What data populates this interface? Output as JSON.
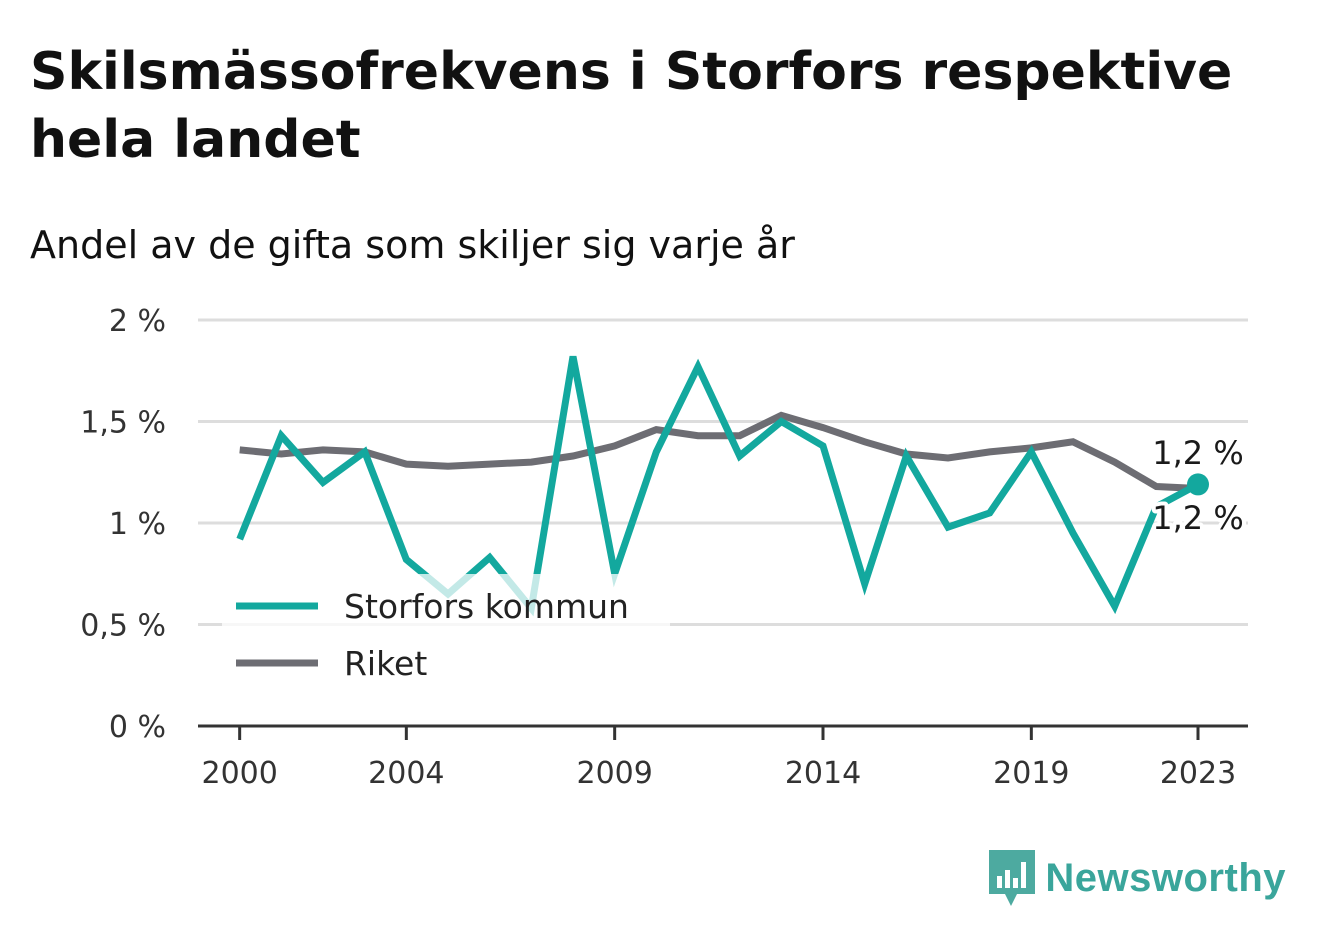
{
  "title": "Skilsmässofrekvens i Storfors respektive hela landet",
  "subtitle": "Andel av de gifta som skiljer sig varje år",
  "brand": {
    "name": "Newsworthy",
    "icon": "newsworthy-logo-icon"
  },
  "colors": {
    "storfors": "#13a89e",
    "riket": "#6d6d73",
    "grid": "#dddddd",
    "axis": "#333333",
    "brand": "#3aa59b"
  },
  "chart_data": {
    "type": "line",
    "title": "Skilsmässofrekvens i Storfors respektive hela landet",
    "subtitle": "Andel av de gifta som skiljer sig varje år",
    "xlabel": "",
    "ylabel": "",
    "x": [
      2000,
      2001,
      2002,
      2003,
      2004,
      2005,
      2006,
      2007,
      2008,
      2009,
      2010,
      2011,
      2012,
      2013,
      2014,
      2015,
      2016,
      2017,
      2018,
      2019,
      2020,
      2021,
      2022,
      2023
    ],
    "xticks": [
      2000,
      2004,
      2009,
      2014,
      2019,
      2023
    ],
    "xtick_labels": [
      "2000",
      "2004",
      "2009",
      "2014",
      "2019",
      "2023"
    ],
    "xlim": [
      1999,
      2024.2
    ],
    "ylim": [
      0,
      2
    ],
    "yticks": [
      0,
      0.5,
      1,
      1.5,
      2
    ],
    "ytick_labels": [
      "0 %",
      "0,5 %",
      "1 %",
      "1,5 %",
      "2 %"
    ],
    "grid": true,
    "legend_position": "bottom-left",
    "series": [
      {
        "name": "Storfors kommun",
        "color": "#13a89e",
        "values": [
          0.92,
          1.43,
          1.2,
          1.35,
          0.82,
          0.65,
          0.83,
          0.58,
          1.82,
          0.75,
          1.35,
          1.77,
          1.33,
          1.5,
          1.38,
          0.7,
          1.33,
          0.98,
          1.05,
          1.35,
          0.95,
          0.59,
          1.08,
          1.19
        ],
        "end_label": "1,2 %"
      },
      {
        "name": "Riket",
        "color": "#6d6d73",
        "values": [
          1.36,
          1.34,
          1.36,
          1.35,
          1.29,
          1.28,
          1.29,
          1.3,
          1.33,
          1.38,
          1.46,
          1.43,
          1.43,
          1.53,
          1.47,
          1.4,
          1.34,
          1.32,
          1.35,
          1.37,
          1.4,
          1.3,
          1.18,
          1.17
        ],
        "end_label": "1,2 %"
      }
    ]
  }
}
